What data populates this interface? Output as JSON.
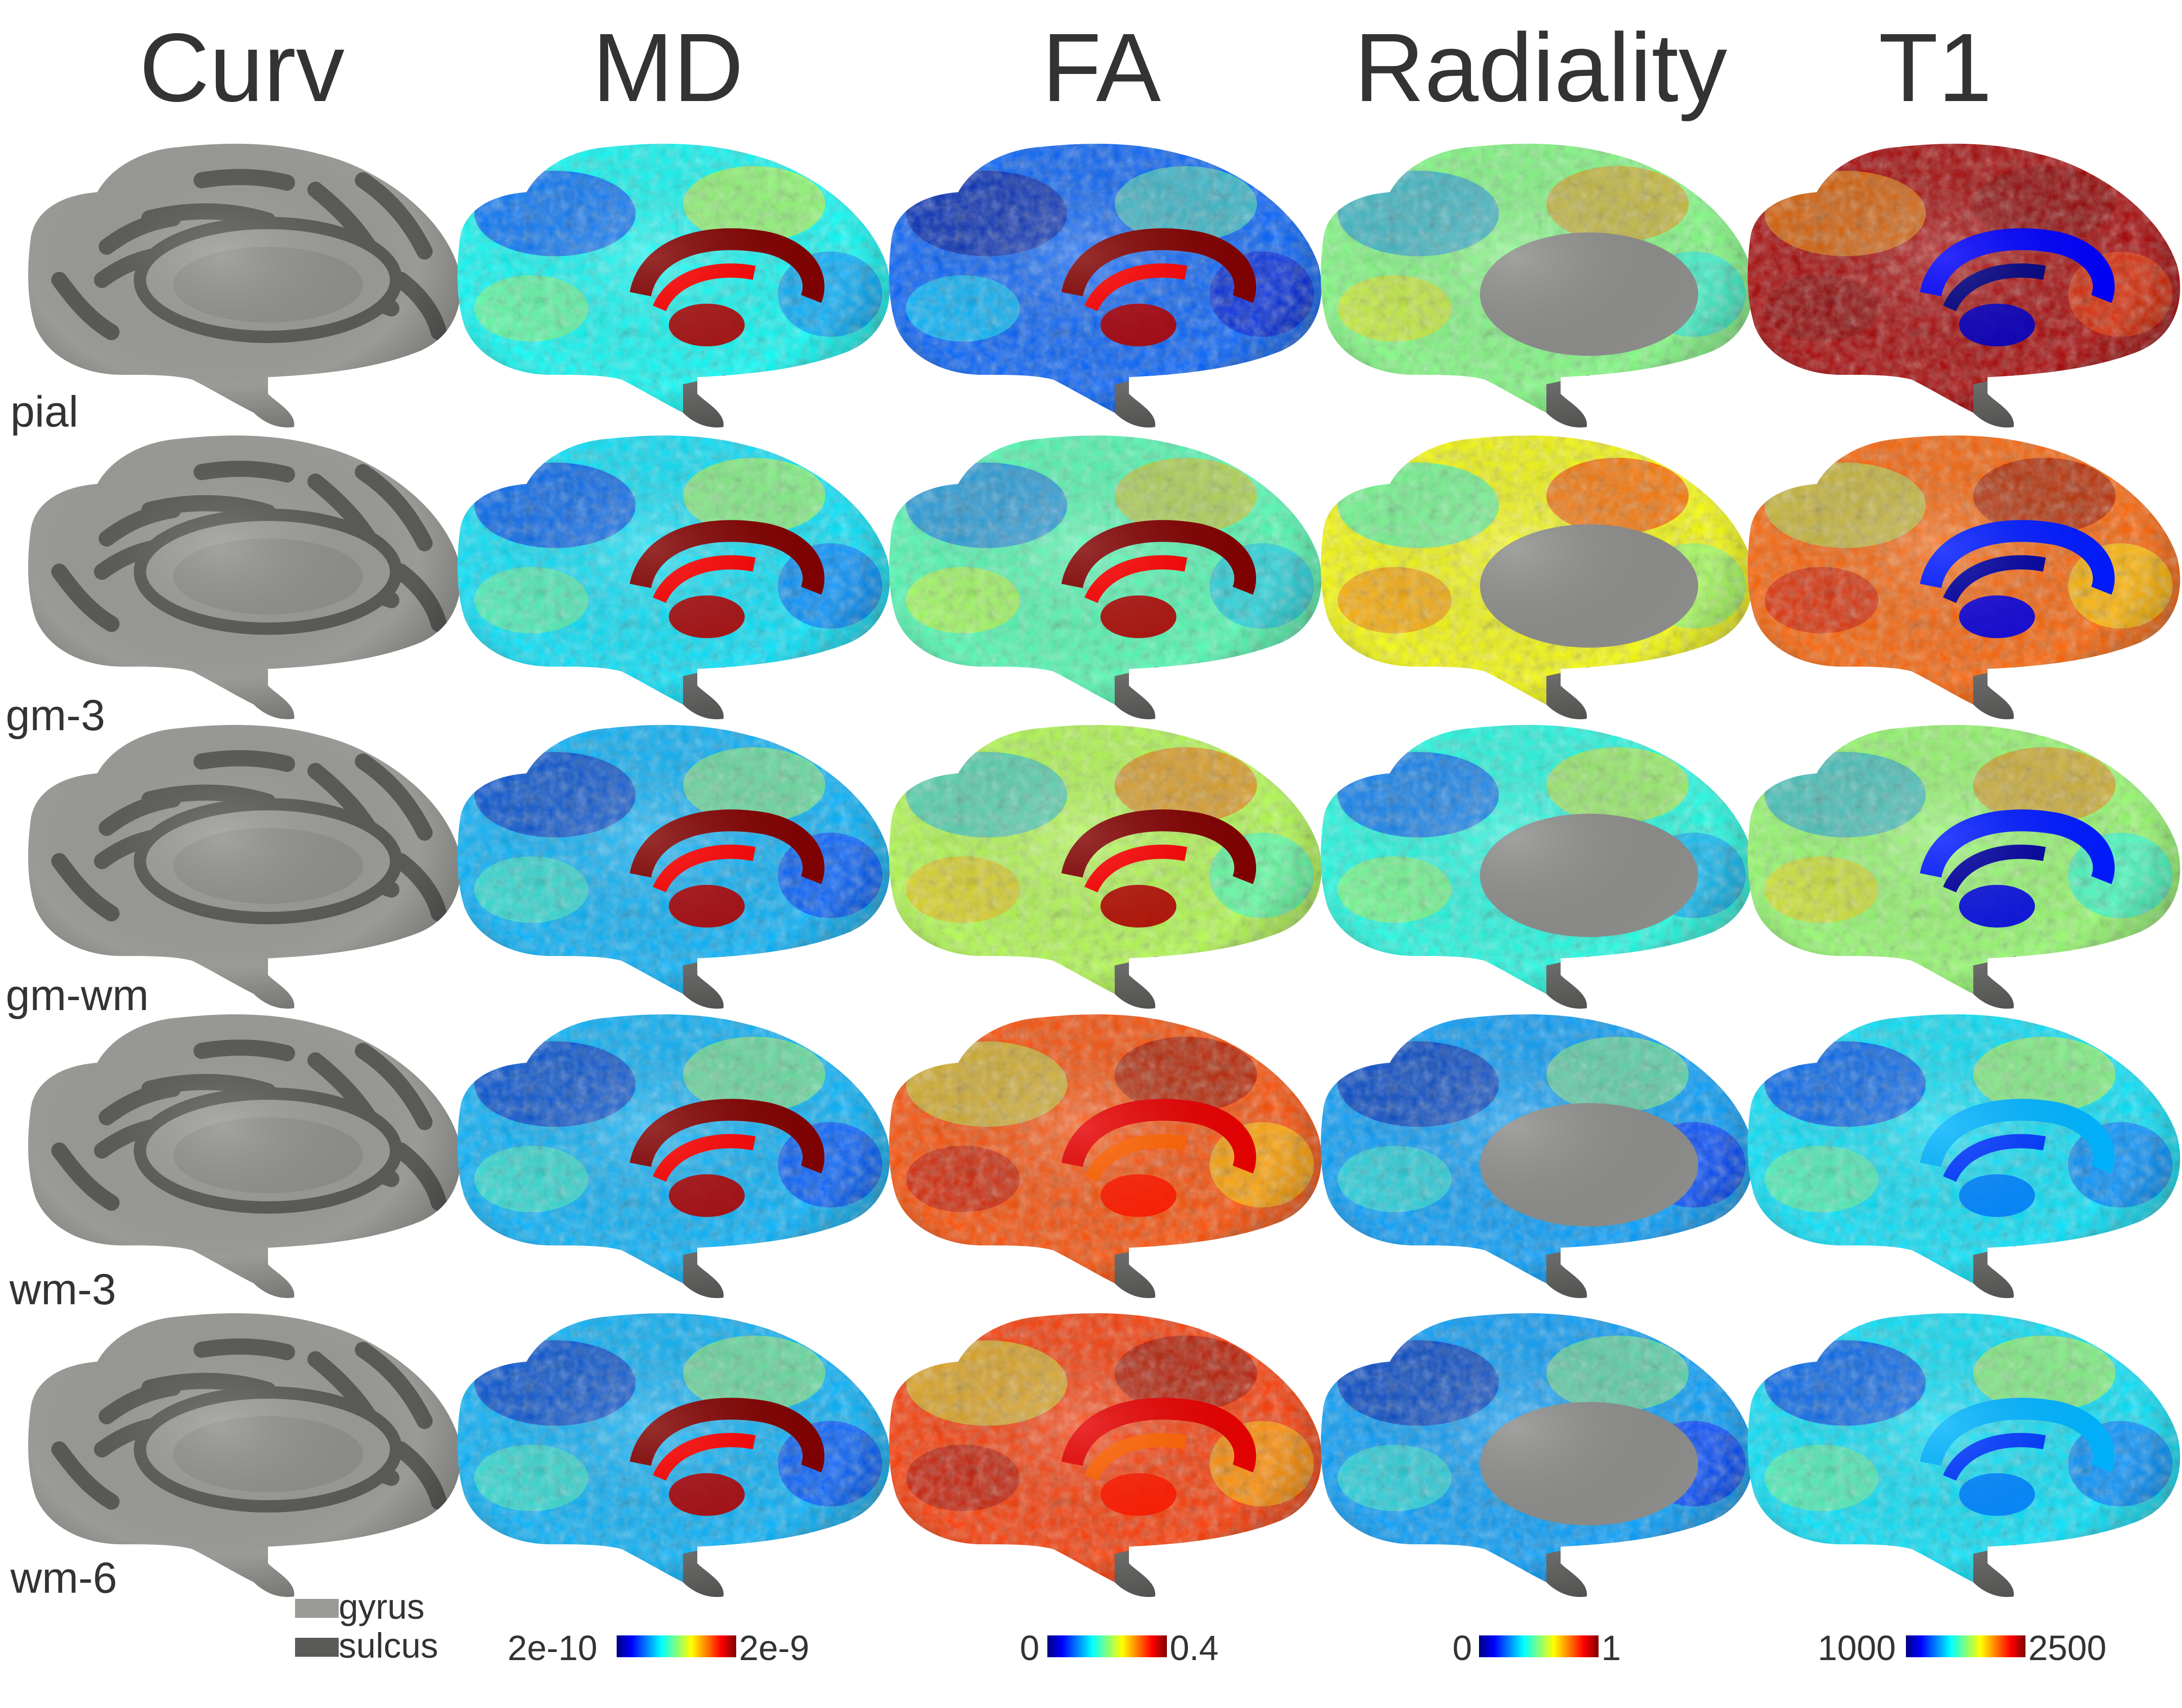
{
  "columns": [
    "Curv",
    "MD",
    "FA",
    "Radiality",
    "T1"
  ],
  "rows": [
    "pial",
    "gm-3",
    "gm-wm",
    "wm-3",
    "wm-6"
  ],
  "legend": {
    "curv": {
      "gyrus": {
        "label": "gyrus",
        "color": "#9a9a96"
      },
      "sulcus": {
        "label": "sulcus",
        "color": "#5a5a58"
      }
    },
    "md": {
      "min": "2e-10",
      "max": "2e-9"
    },
    "fa": {
      "min": "0",
      "max": "0.4"
    },
    "radiality": {
      "min": "0",
      "max": "1"
    },
    "t1": {
      "min": "1000",
      "max": "2500"
    }
  },
  "colormap": "jet",
  "colors": {
    "gyrus": "#9a9a96",
    "sulcus": "#5a5a58",
    "corpus_callosum_cut": "#8c8c8a"
  },
  "maps": {
    "MD": {
      "base": [
        0.38,
        0.35,
        0.3,
        0.3,
        0.3
      ],
      "cc": [
        1.0,
        1.0,
        1.0,
        1.0,
        1.0
      ]
    },
    "FA": {
      "base": [
        0.22,
        0.45,
        0.55,
        0.8,
        0.82
      ],
      "cc": [
        1.0,
        1.0,
        1.0,
        0.9,
        0.9
      ]
    },
    "Radiality": {
      "base": [
        0.5,
        0.62,
        0.4,
        0.28,
        0.28
      ],
      "cc": null
    },
    "T1": {
      "base": [
        0.96,
        0.78,
        0.52,
        0.35,
        0.35
      ],
      "cc": [
        0.12,
        0.15,
        0.15,
        0.3,
        0.3
      ]
    }
  }
}
